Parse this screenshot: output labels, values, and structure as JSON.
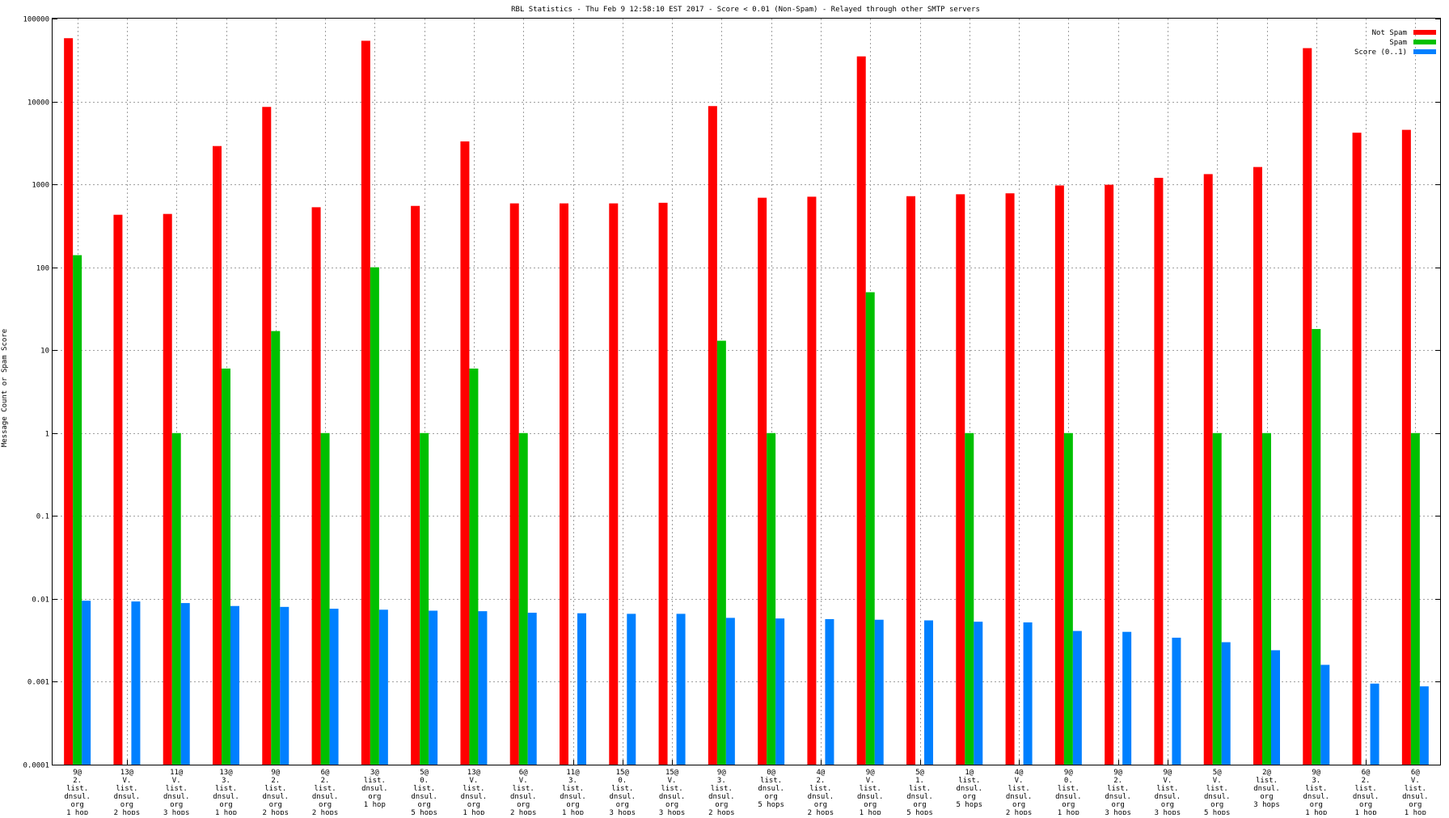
{
  "chart_data": {
    "type": "bar",
    "title": "RBL Statistics - Thu Feb  9 12:58:10 EST 2017 - Score < 0.01 (Non-Spam) - Relayed through other SMTP servers",
    "xlabel": "",
    "ylabel": "Message Count or Spam Score",
    "yscale": "log",
    "ylim": [
      0.0001,
      100000
    ],
    "yticks": [
      "0.0001",
      "0.001",
      "0.01",
      "0.1",
      "1",
      "10",
      "100",
      "1000",
      "10000",
      "100000"
    ],
    "grid": true,
    "legend_position": "top-right",
    "categories": [
      [
        "9@",
        "2.",
        "list.",
        "dnsul.",
        "org",
        "1 hop"
      ],
      [
        "13@",
        "V.",
        "list.",
        "dnsul.",
        "org",
        "2 hops"
      ],
      [
        "11@",
        "V.",
        "list.",
        "dnsul.",
        "org",
        "3 hops"
      ],
      [
        "13@",
        "3.",
        "list.",
        "dnsul.",
        "org",
        "1 hop"
      ],
      [
        "9@",
        "2.",
        "list.",
        "dnsul.",
        "org",
        "2 hops"
      ],
      [
        "6@",
        "2.",
        "list.",
        "dnsul.",
        "org",
        "2 hops"
      ],
      [
        "3@",
        "list.",
        "dnsul.",
        "org",
        "1 hop"
      ],
      [
        "5@",
        "0.",
        "list.",
        "dnsul.",
        "org",
        "5 hops"
      ],
      [
        "13@",
        "V.",
        "list.",
        "dnsul.",
        "org",
        "1 hop"
      ],
      [
        "6@",
        "V.",
        "list.",
        "dnsul.",
        "org",
        "2 hops"
      ],
      [
        "11@",
        "3.",
        "list.",
        "dnsul.",
        "org",
        "1 hop"
      ],
      [
        "15@",
        "0.",
        "list.",
        "dnsul.",
        "org",
        "3 hops"
      ],
      [
        "15@",
        "V.",
        "list.",
        "dnsul.",
        "org",
        "3 hops"
      ],
      [
        "9@",
        "3.",
        "list.",
        "dnsul.",
        "org",
        "2 hops"
      ],
      [
        "0@",
        "list.",
        "dnsul.",
        "org",
        "5 hops"
      ],
      [
        "4@",
        "2.",
        "list.",
        "dnsul.",
        "org",
        "2 hops"
      ],
      [
        "9@",
        "V.",
        "list.",
        "dnsul.",
        "org",
        "1 hop"
      ],
      [
        "5@",
        "1.",
        "list.",
        "dnsul.",
        "org",
        "5 hops"
      ],
      [
        "1@",
        "list.",
        "dnsul.",
        "org",
        "5 hops"
      ],
      [
        "4@",
        "V.",
        "list.",
        "dnsul.",
        "org",
        "2 hops"
      ],
      [
        "9@",
        "0.",
        "list.",
        "dnsul.",
        "org",
        "1 hop"
      ],
      [
        "9@",
        "2.",
        "list.",
        "dnsul.",
        "org",
        "3 hops"
      ],
      [
        "9@",
        "V.",
        "list.",
        "dnsul.",
        "org",
        "3 hops"
      ],
      [
        "5@",
        "V.",
        "list.",
        "dnsul.",
        "org",
        "5 hops"
      ],
      [
        "2@",
        "list.",
        "dnsul.",
        "org",
        "3 hops"
      ],
      [
        "9@",
        "3.",
        "list.",
        "dnsul.",
        "org",
        "1 hop"
      ],
      [
        "6@",
        "2.",
        "list.",
        "dnsul.",
        "org",
        "1 hop"
      ],
      [
        "6@",
        "V.",
        "list.",
        "dnsul.",
        "org",
        "1 hop"
      ]
    ],
    "series": [
      {
        "name": "Not Spam",
        "color": "#ff0000",
        "values": [
          58000,
          430,
          440,
          2900,
          8600,
          530,
          54000,
          550,
          3300,
          590,
          590,
          590,
          600,
          8800,
          690,
          710,
          35000,
          720,
          760,
          780,
          970,
          990,
          1200,
          1330,
          1620,
          44000,
          4200,
          4550
        ]
      },
      {
        "name": "Spam",
        "color": "#00c000",
        "values": [
          140,
          null,
          1,
          6,
          17,
          1,
          100,
          1,
          6,
          1,
          null,
          null,
          null,
          13,
          1,
          null,
          50,
          null,
          1,
          null,
          1,
          null,
          null,
          1,
          1,
          18,
          null,
          1
        ]
      },
      {
        "name": "Score (0..1)",
        "color": "#0080ff",
        "values": [
          0.0095,
          0.0093,
          0.0089,
          0.0082,
          0.008,
          0.0076,
          0.0074,
          0.0072,
          0.0071,
          0.0068,
          0.0067,
          0.0066,
          0.0066,
          0.0059,
          0.0058,
          0.0057,
          0.0056,
          0.0055,
          0.0053,
          0.0052,
          0.0041,
          0.004,
          0.0034,
          0.003,
          0.0024,
          0.0016,
          0.00095,
          0.00088
        ]
      }
    ]
  }
}
